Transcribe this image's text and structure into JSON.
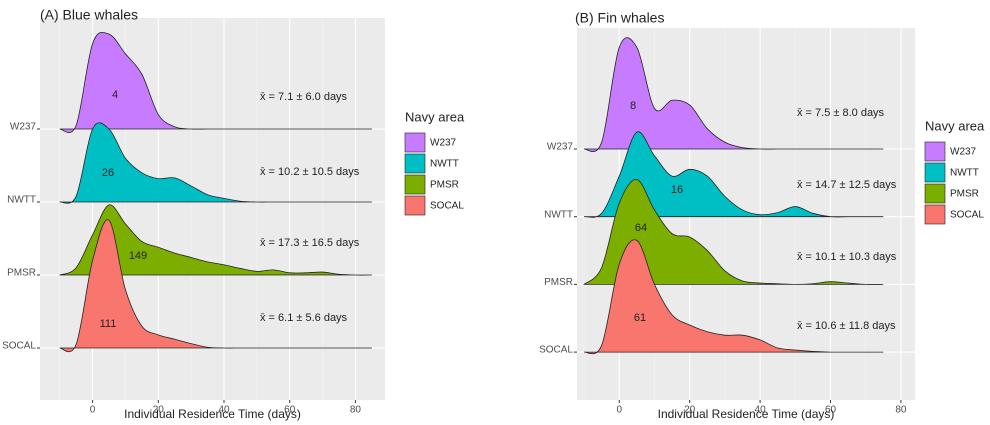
{
  "chart_data": [
    {
      "type": "ridgeline",
      "title": "(A) Blue whales",
      "x_label": "Individual Residence Time (days)",
      "xlim": [
        -16,
        89
      ],
      "xticks": [
        0,
        20,
        40,
        60,
        80
      ],
      "grid": true,
      "categories": [
        "W237",
        "NWTT",
        "PMSR",
        "SOCAL"
      ],
      "x": [
        -10,
        -5,
        0,
        5,
        10,
        15,
        20,
        25,
        30,
        35,
        40,
        45,
        50,
        55,
        60,
        65,
        70,
        75,
        80,
        85
      ],
      "legend_title": "Navy area",
      "series": [
        {
          "name": "W237",
          "color": "#c77cff",
          "n": 4,
          "label": "x̄ = 7.1 ± 6.0 days",
          "values": [
            0,
            0.05,
            1.17,
            1.3,
            1.03,
            0.75,
            0.2,
            0.03,
            0,
            0,
            0,
            0,
            0,
            0,
            0,
            0,
            0,
            0,
            0,
            0
          ]
        },
        {
          "name": "NWTT",
          "color": "#00bfc4",
          "n": 26,
          "label": "x̄ = 10.2 ± 10.5 days",
          "values": [
            0,
            0.08,
            1.0,
            1.0,
            0.6,
            0.4,
            0.32,
            0.33,
            0.22,
            0.1,
            0.05,
            0.01,
            0,
            0,
            0,
            0,
            0,
            0,
            0,
            0
          ]
        },
        {
          "name": "PMSR",
          "color": "#7cae00",
          "n": 149,
          "label": "x̄ = 17.3 ± 16.5 days",
          "values": [
            0,
            0.1,
            0.55,
            0.96,
            0.7,
            0.46,
            0.38,
            0.3,
            0.24,
            0.18,
            0.14,
            0.09,
            0.05,
            0.07,
            0.03,
            0.03,
            0.04,
            0.01,
            0,
            0
          ]
        },
        {
          "name": "SOCAL",
          "color": "#f8766d",
          "n": 111,
          "label": "x̄ = 6.1 ± 5.6 days",
          "values": [
            0,
            0.05,
            1.2,
            1.75,
            0.8,
            0.3,
            0.18,
            0.12,
            0.06,
            0.01,
            0,
            0,
            0,
            0,
            0,
            0,
            0,
            0,
            0,
            0
          ]
        }
      ]
    },
    {
      "type": "ridgeline",
      "title": "(B) Fin whales",
      "x_label": "Individual Residence Time (days)",
      "xlim": [
        -12,
        84
      ],
      "xticks": [
        0,
        20,
        40,
        60,
        80
      ],
      "grid": true,
      "categories": [
        "W237",
        "NWTT",
        "PMSR",
        "SOCAL"
      ],
      "x": [
        -10,
        -5,
        0,
        5,
        10,
        15,
        20,
        25,
        30,
        35,
        40,
        45,
        50,
        55,
        60,
        65,
        70,
        75
      ],
      "legend_title": "Navy area",
      "series": [
        {
          "name": "W237",
          "color": "#c77cff",
          "n": 8,
          "label": "x̄ = 7.5 ± 8.0 days",
          "values": [
            0,
            0.1,
            1.5,
            1.5,
            0.6,
            0.72,
            0.65,
            0.3,
            0.1,
            0.02,
            0,
            0,
            0,
            0,
            0,
            0,
            0,
            0
          ]
        },
        {
          "name": "NWTT",
          "color": "#00bfc4",
          "n": 16,
          "label": "x̄ = 14.7 ± 12.5 days",
          "values": [
            0,
            0.05,
            0.6,
            1.25,
            0.9,
            0.6,
            0.7,
            0.6,
            0.3,
            0.1,
            0.03,
            0.06,
            0.15,
            0.05,
            0,
            0,
            0,
            0
          ]
        },
        {
          "name": "PMSR",
          "color": "#7cae00",
          "n": 64,
          "label": "x̄ = 10.1 ± 10.3 days",
          "values": [
            0,
            0.25,
            1.2,
            1.55,
            1.1,
            0.75,
            0.7,
            0.5,
            0.2,
            0.05,
            0.02,
            0.01,
            0,
            0.01,
            0.04,
            0.02,
            0,
            0
          ]
        },
        {
          "name": "SOCAL",
          "color": "#f8766d",
          "n": 61,
          "label": "x̄ = 10.6 ± 11.8 days",
          "values": [
            0,
            0.1,
            1.3,
            1.65,
            1.0,
            0.55,
            0.4,
            0.3,
            0.25,
            0.25,
            0.18,
            0.06,
            0.03,
            0.01,
            0,
            0,
            0,
            0
          ]
        }
      ]
    }
  ]
}
